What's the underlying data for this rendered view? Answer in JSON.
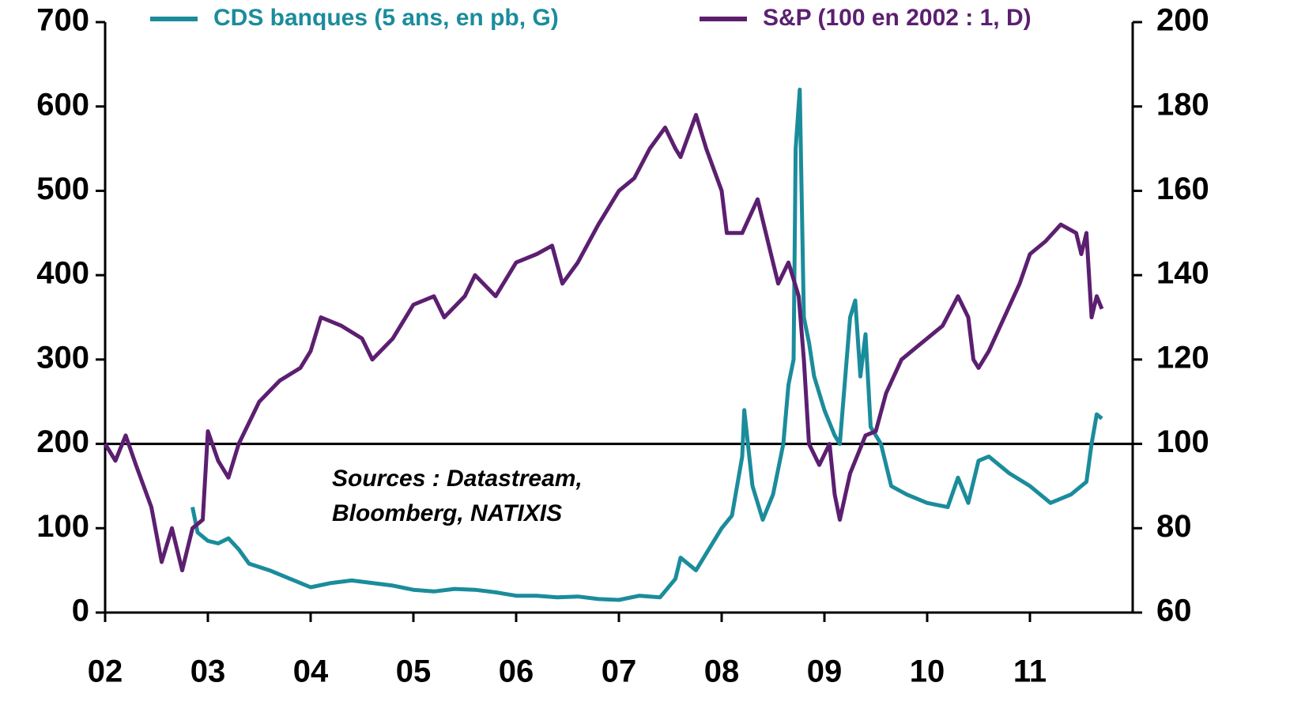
{
  "chart_data": {
    "type": "line",
    "annotation": [
      "Sources : Datastream,",
      "Bloomberg, NATIXIS"
    ],
    "xlim": [
      2002,
      2012
    ],
    "xticks": [
      {
        "value": 2002,
        "label": "02"
      },
      {
        "value": 2003,
        "label": "03"
      },
      {
        "value": 2004,
        "label": "04"
      },
      {
        "value": 2005,
        "label": "05"
      },
      {
        "value": 2006,
        "label": "06"
      },
      {
        "value": 2007,
        "label": "07"
      },
      {
        "value": 2008,
        "label": "08"
      },
      {
        "value": 2009,
        "label": "09"
      },
      {
        "value": 2010,
        "label": "10"
      },
      {
        "value": 2011,
        "label": "11"
      }
    ],
    "ylim": [
      0,
      700
    ],
    "yticks": [
      0,
      100,
      200,
      300,
      400,
      500,
      600,
      700
    ],
    "y2lim": [
      60,
      200
    ],
    "y2ticks": [
      60,
      80,
      100,
      120,
      140,
      160,
      180,
      200
    ],
    "reference_line": 200,
    "series": [
      {
        "name": "CDS banques (5 ans, en pb, G)",
        "color": "#1b8c9b",
        "x": [
          2002.85,
          2002.9,
          2003.0,
          2003.1,
          2003.2,
          2003.3,
          2003.4,
          2003.6,
          2003.8,
          2004.0,
          2004.2,
          2004.4,
          2004.6,
          2004.8,
          2005.0,
          2005.2,
          2005.4,
          2005.6,
          2005.8,
          2006.0,
          2006.2,
          2006.4,
          2006.6,
          2006.8,
          2007.0,
          2007.2,
          2007.4,
          2007.55,
          2007.6,
          2007.75,
          2007.85,
          2008.0,
          2008.1,
          2008.2,
          2008.22,
          2008.3,
          2008.4,
          2008.5,
          2008.6,
          2008.65,
          2008.7,
          2008.72,
          2008.76,
          2008.8,
          2008.85,
          2008.9,
          2009.0,
          2009.1,
          2009.15,
          2009.25,
          2009.3,
          2009.35,
          2009.4,
          2009.45,
          2009.55,
          2009.65,
          2009.8,
          2010.0,
          2010.2,
          2010.3,
          2010.4,
          2010.5,
          2010.6,
          2010.8,
          2011.0,
          2011.2,
          2011.4,
          2011.55,
          2011.6,
          2011.65,
          2011.7
        ],
        "values": [
          125,
          95,
          85,
          82,
          88,
          75,
          58,
          50,
          40,
          30,
          35,
          38,
          35,
          32,
          27,
          25,
          28,
          27,
          24,
          20,
          20,
          18,
          19,
          16,
          15,
          20,
          18,
          40,
          65,
          50,
          70,
          100,
          115,
          185,
          240,
          150,
          110,
          140,
          200,
          270,
          300,
          550,
          620,
          350,
          320,
          280,
          240,
          210,
          200,
          350,
          370,
          280,
          330,
          220,
          200,
          150,
          140,
          130,
          125,
          160,
          130,
          180,
          185,
          165,
          150,
          130,
          140,
          155,
          200,
          235,
          230
        ]
      },
      {
        "name": "S&P (100 en 2002 : 1, D)",
        "color": "#5c1f70",
        "axis": "y2",
        "x": [
          2002.0,
          2002.1,
          2002.2,
          2002.3,
          2002.45,
          2002.55,
          2002.65,
          2002.75,
          2002.85,
          2002.95,
          2003.0,
          2003.1,
          2003.2,
          2003.3,
          2003.5,
          2003.7,
          2003.9,
          2004.0,
          2004.1,
          2004.3,
          2004.5,
          2004.6,
          2004.8,
          2005.0,
          2005.2,
          2005.3,
          2005.5,
          2005.6,
          2005.8,
          2006.0,
          2006.2,
          2006.35,
          2006.45,
          2006.6,
          2006.8,
          2007.0,
          2007.15,
          2007.3,
          2007.45,
          2007.55,
          2007.6,
          2007.75,
          2007.85,
          2008.0,
          2008.05,
          2008.2,
          2008.35,
          2008.45,
          2008.55,
          2008.65,
          2008.75,
          2008.8,
          2008.85,
          2008.95,
          2009.05,
          2009.1,
          2009.15,
          2009.25,
          2009.4,
          2009.5,
          2009.6,
          2009.75,
          2009.9,
          2010.0,
          2010.15,
          2010.3,
          2010.4,
          2010.45,
          2010.5,
          2010.6,
          2010.75,
          2010.9,
          2011.0,
          2011.15,
          2011.3,
          2011.45,
          2011.5,
          2011.55,
          2011.6,
          2011.65,
          2011.7
        ],
        "values": [
          100,
          96,
          102,
          95,
          85,
          72,
          80,
          70,
          80,
          82,
          103,
          96,
          92,
          100,
          110,
          115,
          118,
          122,
          130,
          128,
          125,
          120,
          125,
          133,
          135,
          130,
          135,
          140,
          135,
          143,
          145,
          147,
          138,
          143,
          152,
          160,
          163,
          170,
          175,
          170,
          168,
          178,
          170,
          160,
          150,
          150,
          158,
          148,
          138,
          143,
          135,
          120,
          100,
          95,
          100,
          88,
          82,
          93,
          102,
          103,
          112,
          120,
          123,
          125,
          128,
          135,
          130,
          120,
          118,
          122,
          130,
          138,
          145,
          148,
          152,
          150,
          145,
          150,
          130,
          135,
          132
        ]
      }
    ]
  }
}
